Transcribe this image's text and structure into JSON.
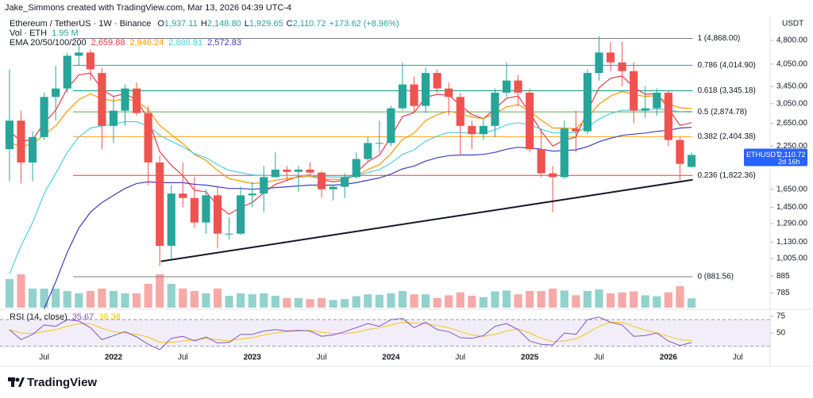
{
  "header": {
    "credit": "Jake_Simmons created with TradingView.com, Mar 13, 2026 04:39 UTC-4",
    "symbol": "Ethereum / TetherUS · 1W · Binance",
    "legend_ohlc": [
      {
        "key": "O",
        "value": "1,937.11"
      },
      {
        "key": "H",
        "value": "2,148.80"
      },
      {
        "key": "L",
        "value": "1,929.65"
      },
      {
        "key": "C",
        "value": "2,110.72"
      }
    ],
    "change": "+173.62 (+8.96%)",
    "vol_label": "Vol · ETH",
    "vol_value": "1.95 M",
    "ema_label": "EMA 20/50/100/200",
    "ema_values": [
      "2,659.88",
      "2,946.24",
      "2,886.81",
      "2,572.83"
    ],
    "rsi_label": "RSI (14, close)",
    "rsi_values": [
      "35.67",
      "38.38"
    ],
    "currency": "USDT",
    "logo": "TradingView"
  },
  "chart_data": {
    "type": "candlestick",
    "log_scale": true,
    "up_color": "#26a69a",
    "down_color": "#ef5350",
    "ylim": [
      706,
      5725
    ],
    "yticks": [
      785,
      885,
      {
        "value": 1005,
        "label": "1,005.00"
      },
      {
        "value": 1130,
        "label": "1,130.00"
      },
      {
        "value": 1290,
        "label": "1,290.00"
      },
      {
        "value": 1450,
        "label": "1,450.00"
      },
      {
        "value": 1650,
        "label": "1,650.00"
      },
      {
        "value": 2250,
        "label": "2,250.00"
      },
      {
        "value": 2650,
        "label": "2,650.00"
      },
      {
        "value": 3050,
        "label": "3,050.00"
      },
      {
        "value": 3450,
        "label": "3,450.00"
      },
      {
        "value": 4050,
        "label": "4,050.00"
      },
      {
        "value": 4800,
        "label": "4,800.00"
      }
    ],
    "xlim": [
      -0.82,
      65.8
    ],
    "xticks": [
      {
        "value": 3,
        "label": "Jul"
      },
      {
        "value": 9,
        "label": "2022"
      },
      {
        "value": 15,
        "label": "Jul"
      },
      {
        "value": 21,
        "label": "2023"
      },
      {
        "value": 27,
        "label": "Jul"
      },
      {
        "value": 33,
        "label": "2024"
      },
      {
        "value": 39,
        "label": "Jul"
      },
      {
        "value": 45,
        "label": "2025"
      },
      {
        "value": 51,
        "label": "Jul"
      },
      {
        "value": 57,
        "label": "2026"
      },
      {
        "value": 63,
        "label": "Jul"
      }
    ],
    "ohlc": [
      [
        2200,
        3900,
        1750,
        2700
      ],
      [
        2700,
        2900,
        1720,
        2000
      ],
      [
        2000,
        2500,
        1750,
        2400
      ],
      [
        2400,
        3300,
        2350,
        3200
      ],
      [
        3200,
        4000,
        2700,
        3400
      ],
      [
        3400,
        4400,
        3300,
        4300
      ],
      [
        4300,
        4700,
        4000,
        4400
      ],
      [
        4400,
        4500,
        3600,
        3900
      ],
      [
        3800,
        3950,
        2200,
        2600
      ],
      [
        2600,
        3200,
        2300,
        2900
      ],
      [
        2900,
        3500,
        2600,
        3400
      ],
      [
        3400,
        3550,
        2800,
        2850
      ],
      [
        2850,
        3000,
        1700,
        2000
      ],
      [
        2000,
        2100,
        950,
        1100
      ],
      [
        1100,
        1700,
        1000,
        1600
      ],
      [
        1600,
        2000,
        1450,
        1550
      ],
      [
        1550,
        1800,
        1250,
        1300
      ],
      [
        1300,
        1650,
        1200,
        1580
      ],
      [
        1580,
        1680,
        1080,
        1200
      ],
      [
        1200,
        1350,
        1150,
        1200
      ],
      [
        1200,
        1680,
        1190,
        1580
      ],
      [
        1580,
        1740,
        1450,
        1600
      ],
      [
        1600,
        1950,
        1400,
        1800
      ],
      [
        1800,
        2150,
        1800,
        1900
      ],
      [
        1900,
        1950,
        1750,
        1870
      ],
      [
        1870,
        1950,
        1620,
        1900
      ],
      [
        1900,
        2000,
        1850,
        1860
      ],
      [
        1860,
        1880,
        1550,
        1650
      ],
      [
        1650,
        1700,
        1520,
        1680
      ],
      [
        1680,
        1850,
        1550,
        1800
      ],
      [
        1800,
        2150,
        1780,
        2050
      ],
      [
        2050,
        2400,
        2000,
        2300
      ],
      [
        2300,
        2700,
        2150,
        2300
      ],
      [
        2300,
        3000,
        2250,
        2950
      ],
      [
        2950,
        4100,
        2900,
        3500
      ],
      [
        3500,
        3700,
        2850,
        3000
      ],
      [
        3000,
        3950,
        2850,
        3800
      ],
      [
        3800,
        3900,
        3300,
        3400
      ],
      [
        3400,
        3550,
        2800,
        3200
      ],
      [
        3200,
        3300,
        2100,
        2600
      ],
      [
        2600,
        2700,
        2200,
        2450
      ],
      [
        2450,
        2750,
        2350,
        2600
      ],
      [
        2600,
        3400,
        2400,
        3300
      ],
      [
        3300,
        4100,
        3200,
        3600
      ],
      [
        3600,
        3750,
        3000,
        3300
      ],
      [
        3300,
        3400,
        2150,
        2200
      ],
      [
        2200,
        2550,
        1800,
        1850
      ],
      [
        1850,
        1950,
        1400,
        1800
      ],
      [
        1800,
        2700,
        1780,
        2550
      ],
      [
        2550,
        2900,
        2150,
        2500
      ],
      [
        2500,
        3900,
        2450,
        3800
      ],
      [
        3800,
        4950,
        3600,
        4400
      ],
      [
        4400,
        4750,
        3850,
        4100
      ],
      [
        4100,
        4750,
        3450,
        3850
      ],
      [
        3850,
        4100,
        2650,
        2900
      ],
      [
        2900,
        3450,
        2750,
        2950
      ],
      [
        2950,
        3400,
        2800,
        3300
      ],
      [
        3300,
        3350,
        2250,
        2350
      ],
      [
        2350,
        2400,
        1760,
        1980
      ],
      [
        1937.11,
        2148.8,
        1929.65,
        2110.72
      ]
    ],
    "volumes": [
      6,
      7,
      4,
      4,
      4,
      3.5,
      3,
      3.5,
      4,
      3.5,
      3,
      3,
      5,
      7,
      5,
      4,
      3.5,
      3,
      4,
      2.5,
      3,
      2.8,
      3,
      2.5,
      2,
      2,
      1.8,
      2,
      1.6,
      1.8,
      2.4,
      2.8,
      2.7,
      3,
      3.5,
      2.8,
      2.8,
      2,
      2.6,
      3.2,
      2.5,
      2.2,
      3.4,
      3.6,
      2.8,
      3.5,
      3.5,
      4,
      3.6,
      2.6,
      3.5,
      3.8,
      3,
      3.2,
      3.4,
      2.6,
      2.4,
      3.2,
      4.5,
      1.95
    ],
    "series": [
      {
        "name": "EMA 20",
        "color": "#f23645",
        "values": [
          2500,
          2330,
          2360,
          2650,
          2910,
          3400,
          3750,
          3800,
          3380,
          3210,
          3280,
          3130,
          2730,
          2160,
          1960,
          1820,
          1640,
          1620,
          1470,
          1380,
          1450,
          1500,
          1610,
          1710,
          1760,
          1810,
          1830,
          1770,
          1740,
          1760,
          1860,
          2010,
          2110,
          2400,
          2780,
          2860,
          3190,
          3260,
          3240,
          3020,
          2820,
          2740,
          2940,
          3170,
          3220,
          2860,
          2500,
          2250,
          2350,
          2400,
          2890,
          3420,
          3660,
          3720,
          3430,
          3260,
          3280,
          2950,
          2610,
          2659.88
        ]
      },
      {
        "name": "EMA 50",
        "color": "#ff9800",
        "values": [
          2300,
          2250,
          2280,
          2440,
          2600,
          2890,
          3140,
          3270,
          3160,
          3110,
          3160,
          3110,
          2920,
          2610,
          2440,
          2290,
          2120,
          2030,
          1890,
          1780,
          1750,
          1720,
          1730,
          1760,
          1780,
          1800,
          1810,
          1780,
          1770,
          1770,
          1820,
          1900,
          1970,
          2130,
          2360,
          2470,
          2700,
          2820,
          2890,
          2840,
          2770,
          2740,
          2840,
          2980,
          3030,
          2890,
          2710,
          2560,
          2560,
          2550,
          2760,
          3040,
          3220,
          3330,
          3260,
          3210,
          3230,
          3050,
          2960,
          2946.24
        ]
      },
      {
        "name": "EMA 100",
        "color": "#4dd0e1",
        "values": [
          900,
          1100,
          1300,
          1600,
          1850,
          2150,
          2400,
          2560,
          2600,
          2630,
          2680,
          2680,
          2600,
          2430,
          2330,
          2240,
          2130,
          2070,
          1970,
          1890,
          1860,
          1830,
          1820,
          1820,
          1820,
          1820,
          1820,
          1810,
          1800,
          1800,
          1820,
          1860,
          1900,
          1990,
          2120,
          2190,
          2330,
          2420,
          2480,
          2480,
          2470,
          2470,
          2530,
          2620,
          2660,
          2620,
          2540,
          2470,
          2480,
          2480,
          2580,
          2730,
          2840,
          2910,
          2910,
          2910,
          2940,
          2910,
          2880,
          2886.81
        ]
      },
      {
        "name": "EMA 200",
        "color": "#3f3fbf",
        "values": [
          null,
          null,
          null,
          700,
          850,
          1050,
          1250,
          1400,
          1500,
          1580,
          1660,
          1720,
          1740,
          1730,
          1730,
          1730,
          1710,
          1700,
          1680,
          1660,
          1660,
          1650,
          1660,
          1670,
          1680,
          1690,
          1700,
          1700,
          1700,
          1710,
          1730,
          1760,
          1790,
          1840,
          1910,
          1950,
          2020,
          2070,
          2100,
          2110,
          2110,
          2120,
          2150,
          2200,
          2230,
          2220,
          2200,
          2170,
          2180,
          2190,
          2240,
          2320,
          2380,
          2430,
          2450,
          2470,
          2500,
          2520,
          2560,
          2572.83
        ]
      }
    ],
    "fib_x": [
      5.5,
      59.1
    ],
    "fib_levels": [
      {
        "label": "1 (4,868.00)",
        "value": 4868,
        "color": "#787b86"
      },
      {
        "label": "0.786 (4,014.90)",
        "value": 4014.9,
        "color": "#00acc1"
      },
      {
        "label": "0.618 (3,345.18)",
        "value": 3345.18,
        "color": "#089981"
      },
      {
        "label": "0.5 (2,874.78)",
        "value": 2874.78,
        "color": "#4caf50"
      },
      {
        "label": "0.382 (2,404.38)",
        "value": 2404.38,
        "color": "#f9a825"
      },
      {
        "label": "0.236 (1,822.36)",
        "value": 1822.36,
        "color": "#f23645"
      },
      {
        "label": "0 (881.56)",
        "value": 881.56,
        "color": "#787b86"
      }
    ],
    "trendline": {
      "x": [
        13.1,
        59.1
      ],
      "y": [
        984,
        1766
      ],
      "color": "#131722"
    },
    "price_tag": {
      "symbol": "ETHUSDT",
      "price": "2,110.72",
      "countdown": "2d 16h",
      "color": "#2962ff"
    },
    "rsi": {
      "ylim": [
        20.2,
        85.7
      ],
      "yticks": [
        75,
        50
      ],
      "band": [
        30,
        70
      ],
      "color": "#7e57c2",
      "ma_color": "#f5c518",
      "values": [
        55,
        40,
        48,
        62,
        60,
        70,
        68,
        58,
        40,
        46,
        52,
        44,
        33,
        25,
        42,
        45,
        38,
        44,
        35,
        36,
        48,
        48,
        53,
        55,
        53,
        54,
        53,
        45,
        47,
        52,
        58,
        64,
        60,
        70,
        72,
        58,
        66,
        55,
        52,
        43,
        42,
        46,
        60,
        64,
        55,
        38,
        33,
        32,
        50,
        48,
        70,
        74,
        66,
        62,
        45,
        46,
        50,
        38,
        31,
        35.67
      ],
      "ma": [
        55,
        50,
        49,
        52,
        55,
        60,
        64,
        64,
        57,
        52,
        50,
        48,
        44,
        36,
        36,
        38,
        40,
        42,
        40,
        38,
        41,
        43,
        47,
        50,
        52,
        53,
        54,
        51,
        49,
        49,
        51,
        55,
        58,
        62,
        66,
        65,
        64,
        61,
        58,
        52,
        47,
        45,
        48,
        53,
        56,
        50,
        42,
        37,
        38,
        41,
        50,
        60,
        66,
        66,
        60,
        54,
        50,
        45,
        40,
        38.38
      ]
    }
  }
}
